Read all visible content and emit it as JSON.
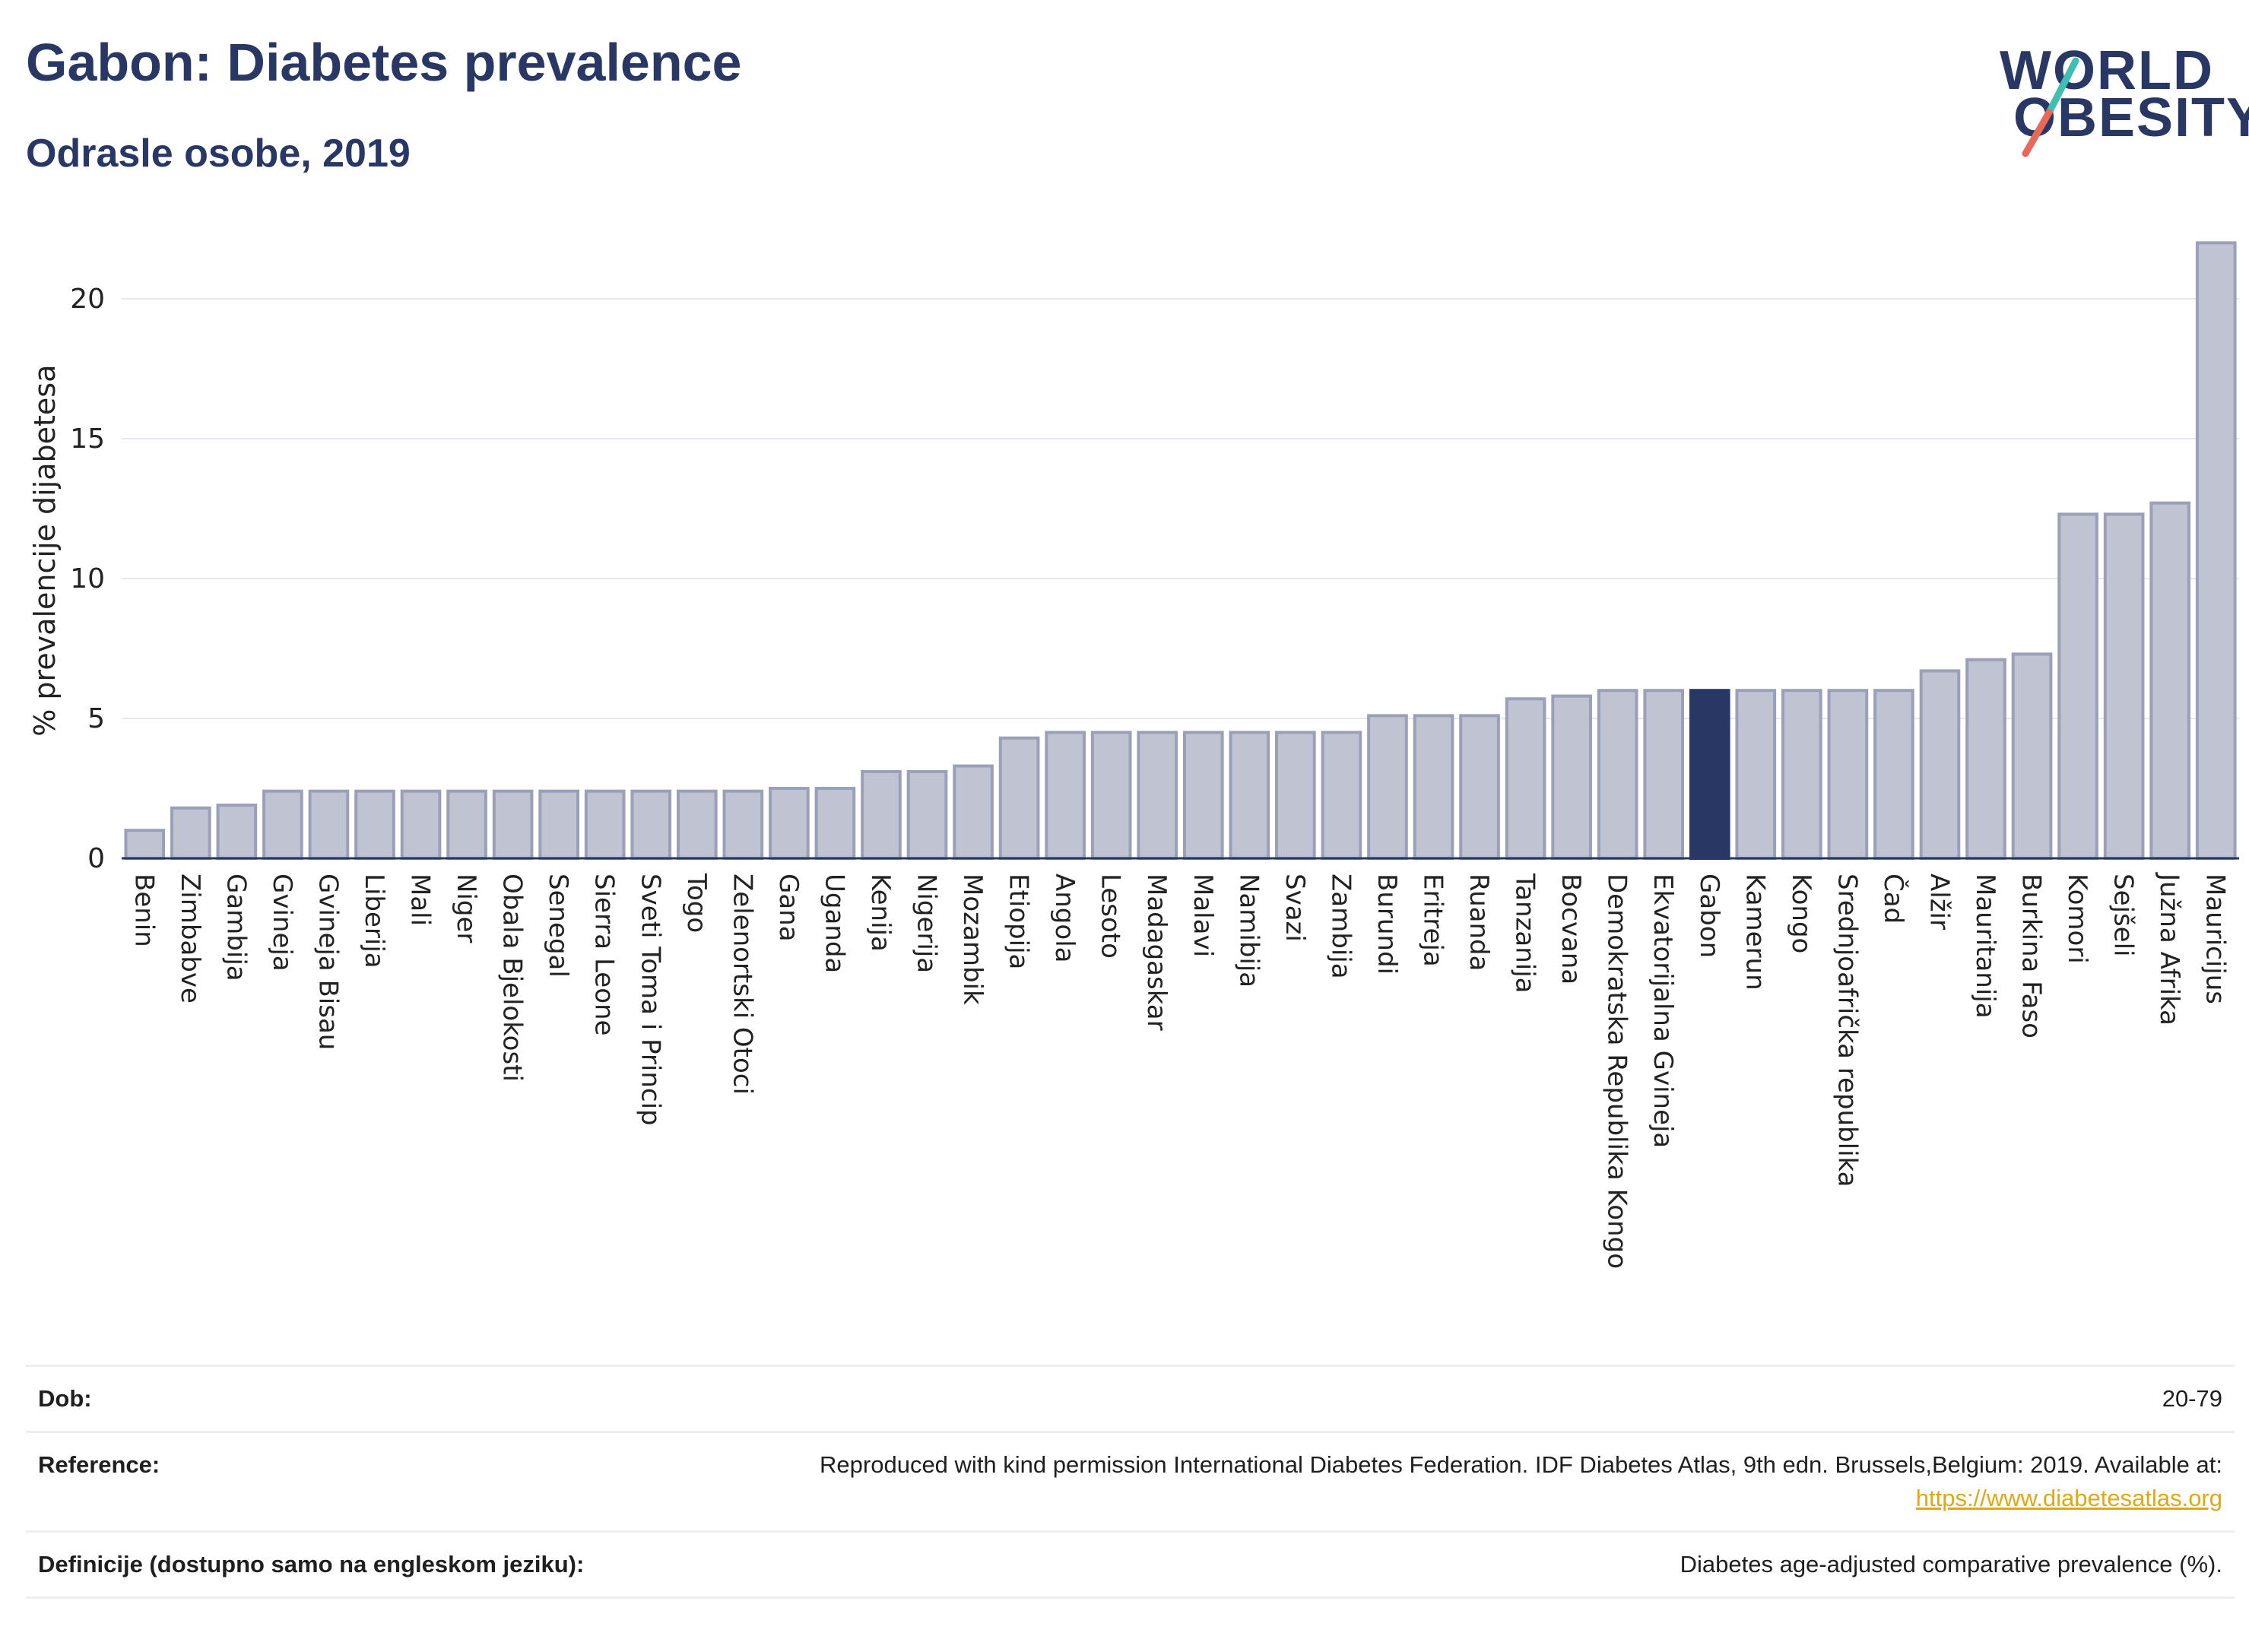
{
  "header": {
    "title": "Gabon: Diabetes prevalence",
    "subtitle": "Odrasle osobe, 2019"
  },
  "logo": {
    "line1": "WORLD",
    "line2": "OBESITY"
  },
  "colors": {
    "bar": "#bfc3d2",
    "bar_border": "#9aa0b8",
    "highlight": "#283763",
    "grid": "#e6e8ef",
    "axis": "#283763",
    "text": "#222222"
  },
  "chart_data": {
    "type": "bar",
    "ylabel": "% prevalencije dijabetesa",
    "ylim": [
      0,
      22.5
    ],
    "yticks": [
      0,
      5,
      10,
      15,
      20
    ],
    "grid": true,
    "highlight": "Gabon",
    "categories": [
      "Benin",
      "Zimbabve",
      "Gambija",
      "Gvineja",
      "Gvineja Bisau",
      "Liberija",
      "Mali",
      "Niger",
      "Obala Bjelokosti",
      "Senegal",
      "Sierra Leone",
      "Sveti Toma i Princip",
      "Togo",
      "Zelenortski Otoci",
      "Gana",
      "Uganda",
      "Kenija",
      "Nigerija",
      "Mozambik",
      "Etiopija",
      "Angola",
      "Lesoto",
      "Madagaskar",
      "Malavi",
      "Namibija",
      "Svazi",
      "Zambija",
      "Burundi",
      "Eritreja",
      "Ruanda",
      "Tanzanija",
      "Bocvana",
      "Demokratska Republika Kongo",
      "Ekvatorijalna Gvineja",
      "Gabon",
      "Kamerun",
      "Kongo",
      "Srednjoafrička republika",
      "Čad",
      "Alžir",
      "Mauritanija",
      "Burkina Faso",
      "Komori",
      "Sejšeli",
      "Južna Afrika",
      "Mauricijus"
    ],
    "values": [
      1.0,
      1.8,
      1.9,
      2.4,
      2.4,
      2.4,
      2.4,
      2.4,
      2.4,
      2.4,
      2.4,
      2.4,
      2.4,
      2.4,
      2.5,
      2.5,
      3.1,
      3.1,
      3.3,
      4.3,
      4.5,
      4.5,
      4.5,
      4.5,
      4.5,
      4.5,
      4.5,
      5.1,
      5.1,
      5.1,
      5.7,
      5.8,
      6.0,
      6.0,
      6.0,
      6.0,
      6.0,
      6.0,
      6.0,
      6.7,
      7.1,
      7.3,
      12.3,
      12.3,
      12.7,
      22.0
    ]
  },
  "footer": {
    "rows": [
      {
        "label": "Dob:",
        "value": "20-79"
      },
      {
        "label": "Reference:",
        "value": "Reproduced with kind permission International Diabetes Federation. IDF Diabetes Atlas, 9th edn. Brussels,Belgium: 2019. Available at:",
        "link": "https://www.diabetesatlas.org"
      },
      {
        "label": "Definicije (dostupno samo na engleskom jeziku):",
        "value": "Diabetes age-adjusted comparative prevalence (%)."
      }
    ]
  }
}
